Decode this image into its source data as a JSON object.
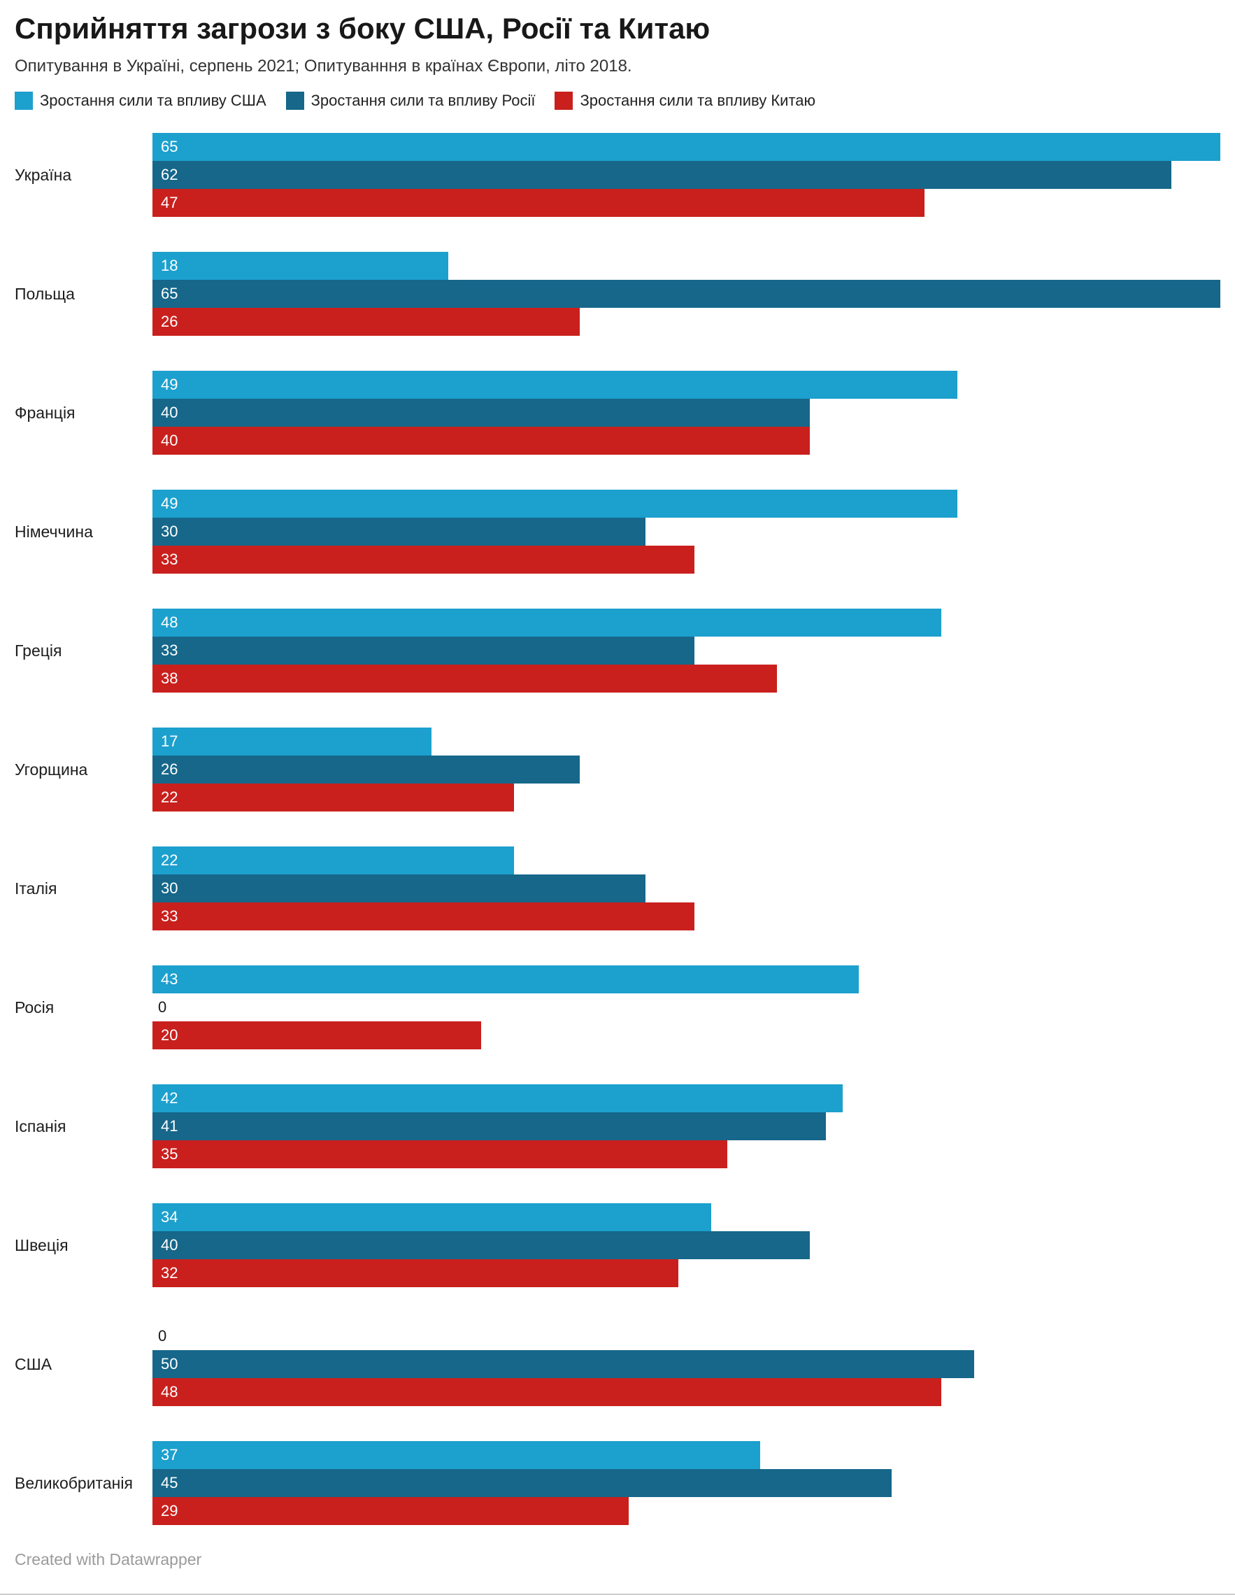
{
  "header": {
    "title": "Сприйняття загрози з боку США, Росії та Китаю",
    "subtitle": "Опитування в Україні, серпень 2021; Опитуванння в країнах Європи, літо 2018."
  },
  "footer": {
    "credit": "Created with Datawrapper"
  },
  "chart_data": {
    "type": "bar",
    "orientation": "horizontal-grouped",
    "title": "Сприйняття загрози з боку США, Росії та Китаю",
    "subtitle": "Опитування в Україні, серпень 2021; Опитуванння в країнах Європи, літо 2018.",
    "xlim": [
      0,
      65
    ],
    "grid": false,
    "legend_position": "top",
    "value_labels": "inside-left",
    "zero_label_color": "#1a1a1a",
    "categories": [
      "Україна",
      "Польща",
      "Франція",
      "Німеччина",
      "Греція",
      "Угорщина",
      "Італія",
      "Росія",
      "Іспанія",
      "Швеція",
      "США",
      "Великобританія"
    ],
    "series_slugs": [
      "usa",
      "russia",
      "china"
    ],
    "series": [
      {
        "name": "Зростання сили та впливу США",
        "color": "#1CA0CE",
        "values": [
          65,
          18,
          49,
          49,
          48,
          17,
          22,
          43,
          42,
          34,
          0,
          37
        ]
      },
      {
        "name": "Зростання сили та впливу Росії",
        "color": "#16678A",
        "values": [
          62,
          65,
          40,
          30,
          33,
          26,
          30,
          0,
          41,
          40,
          50,
          45
        ]
      },
      {
        "name": "Зростання сили та впливу Китаю",
        "color": "#C9201D",
        "values": [
          47,
          26,
          40,
          33,
          38,
          22,
          33,
          20,
          35,
          32,
          48,
          29
        ]
      }
    ]
  }
}
